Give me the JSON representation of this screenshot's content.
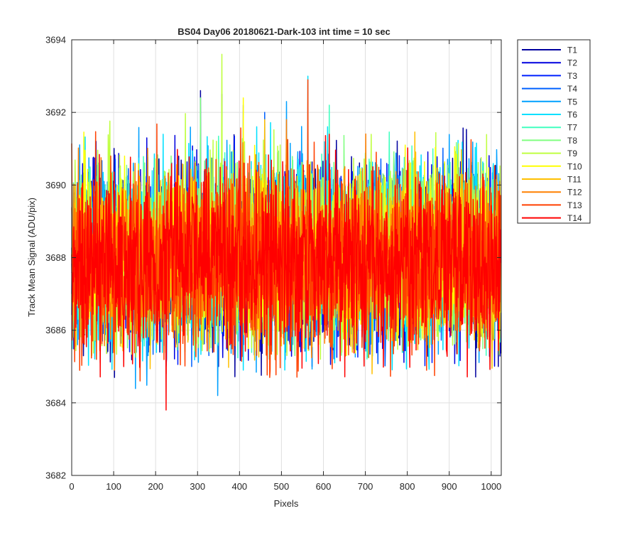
{
  "chart_data": {
    "type": "line",
    "title": "BS04 Day06 20180621-Dark-103 int time = 10 sec",
    "xlabel": "Pixels",
    "ylabel": "Track Mean Signal (ADU/pix)",
    "xlim": [
      0,
      1024
    ],
    "ylim": [
      3682,
      3694
    ],
    "xticks": [
      0,
      100,
      200,
      300,
      400,
      500,
      600,
      700,
      800,
      900,
      1000
    ],
    "yticks": [
      3682,
      3684,
      3686,
      3688,
      3690,
      3692,
      3694
    ],
    "grid": true,
    "legend_position": "outside top-right",
    "n_points": 1024,
    "series": [
      {
        "name": "T1",
        "color": "#00009f",
        "mean": 3688.0,
        "min": 3684.7,
        "max": 3692.6
      },
      {
        "name": "T2",
        "color": "#0000df",
        "mean": 3688.0,
        "min": 3684.9,
        "max": 3692.5
      },
      {
        "name": "T3",
        "color": "#0020ff",
        "mean": 3688.0,
        "min": 3685.0,
        "max": 3692.2
      },
      {
        "name": "T4",
        "color": "#0060ff",
        "mean": 3688.0,
        "min": 3685.0,
        "max": 3692.0
      },
      {
        "name": "T5",
        "color": "#00a0ff",
        "mean": 3688.1,
        "min": 3684.2,
        "max": 3692.3
      },
      {
        "name": "T6",
        "color": "#00e0ff",
        "mean": 3688.1,
        "min": 3684.9,
        "max": 3693.0
      },
      {
        "name": "T7",
        "color": "#40ffbf",
        "mean": 3688.1,
        "min": 3685.2,
        "max": 3692.2
      },
      {
        "name": "T8",
        "color": "#80ff80",
        "mean": 3688.1,
        "min": 3685.3,
        "max": 3692.4
      },
      {
        "name": "T9",
        "color": "#bfff40",
        "mean": 3688.2,
        "min": 3685.2,
        "max": 3693.6
      },
      {
        "name": "T10",
        "color": "#ffff00",
        "mean": 3688.1,
        "min": 3685.3,
        "max": 3692.4
      },
      {
        "name": "T11",
        "color": "#ffbf00",
        "mean": 3688.0,
        "min": 3684.8,
        "max": 3691.8
      },
      {
        "name": "T12",
        "color": "#ff8000",
        "mean": 3688.0,
        "min": 3684.9,
        "max": 3691.8
      },
      {
        "name": "T13",
        "color": "#ff4000",
        "mean": 3687.9,
        "min": 3684.6,
        "max": 3692.9
      },
      {
        "name": "T14",
        "color": "#ff0000",
        "mean": 3687.9,
        "min": 3683.8,
        "max": 3691.4
      }
    ]
  }
}
